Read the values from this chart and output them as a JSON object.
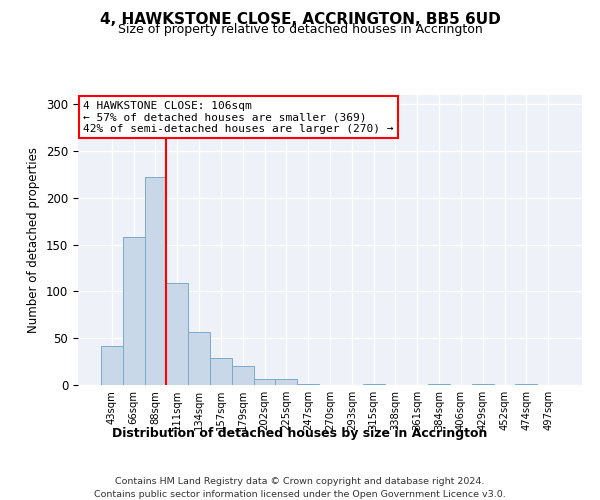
{
  "title": "4, HAWKSTONE CLOSE, ACCRINGTON, BB5 6UD",
  "subtitle": "Size of property relative to detached houses in Accrington",
  "xlabel": "Distribution of detached houses by size in Accrington",
  "ylabel": "Number of detached properties",
  "categories": [
    "43sqm",
    "66sqm",
    "88sqm",
    "111sqm",
    "134sqm",
    "157sqm",
    "179sqm",
    "202sqm",
    "225sqm",
    "247sqm",
    "270sqm",
    "293sqm",
    "315sqm",
    "338sqm",
    "361sqm",
    "384sqm",
    "406sqm",
    "429sqm",
    "452sqm",
    "474sqm",
    "497sqm"
  ],
  "values": [
    42,
    158,
    222,
    109,
    57,
    29,
    20,
    6,
    6,
    1,
    0,
    0,
    1,
    0,
    0,
    1,
    0,
    1,
    0,
    1,
    0
  ],
  "bar_color": "#c8d8e8",
  "bar_edge_color": "#7baac8",
  "vline_color": "red",
  "vline_position": 2.5,
  "annotation_title": "4 HAWKSTONE CLOSE: 106sqm",
  "annotation_line1": "← 57% of detached houses are smaller (369)",
  "annotation_line2": "42% of semi-detached houses are larger (270) →",
  "annotation_box_color": "white",
  "annotation_box_edge": "red",
  "ylim": [
    0,
    310
  ],
  "yticks": [
    0,
    50,
    100,
    150,
    200,
    250,
    300
  ],
  "background_color": "#eef2f8",
  "footer1": "Contains HM Land Registry data © Crown copyright and database right 2024.",
  "footer2": "Contains public sector information licensed under the Open Government Licence v3.0."
}
